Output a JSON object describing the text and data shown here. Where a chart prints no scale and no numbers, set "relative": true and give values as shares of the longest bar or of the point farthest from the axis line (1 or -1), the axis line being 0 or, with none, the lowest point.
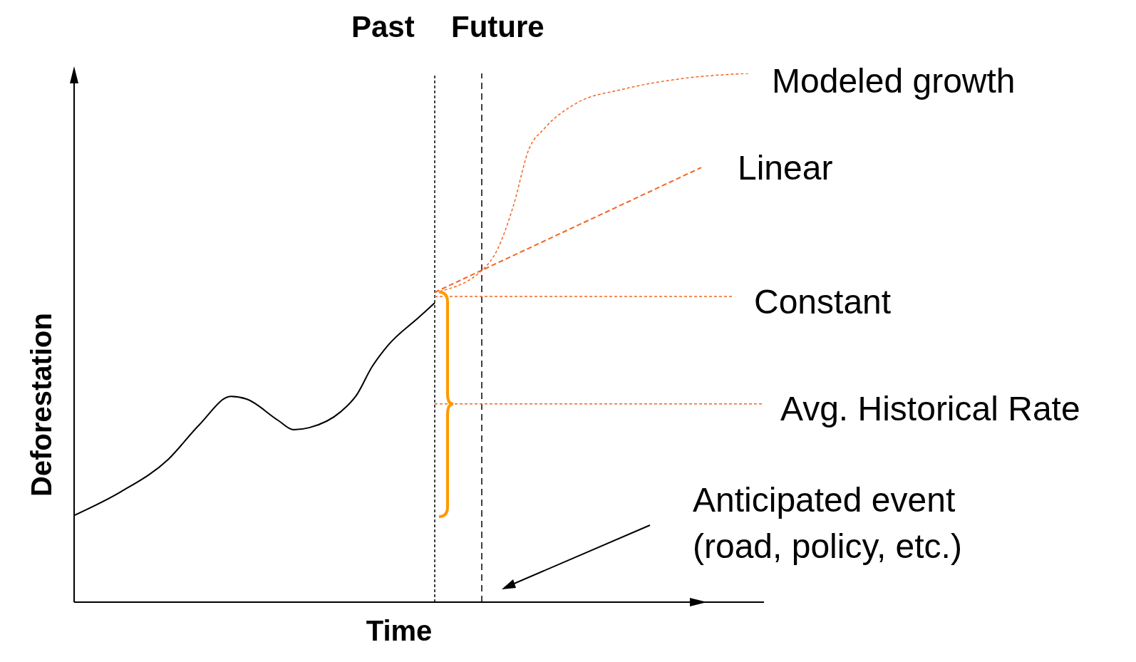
{
  "chart_data": {
    "type": "line",
    "relative": true,
    "xlabel": "Time",
    "ylabel": "Deforestation",
    "categories": [
      null,
      null,
      null,
      null,
      null,
      null,
      null,
      null,
      null,
      null,
      null,
      null,
      null,
      null,
      null,
      null,
      null,
      null,
      null,
      null,
      null,
      null,
      null,
      null,
      null,
      null,
      null,
      null,
      null,
      null,
      null,
      null,
      null,
      null,
      null,
      null,
      null,
      null,
      null,
      null,
      null,
      null,
      null,
      null,
      null
    ],
    "marker": "none",
    "series": [
      {
        "color": "#000000",
        "line_style": "solid",
        "values": [
          0.164,
          null,
          null,
          0.209,
          null,
          null,
          0.27,
          null,
          0.336,
          null,
          0.389,
          0.384,
          null,
          0.344,
          0.326,
          0.33,
          null,
          0.36,
          0.391,
          0.445,
          0.485,
          null,
          0.539,
          0.566,
          null,
          null,
          null,
          null,
          null,
          null,
          null,
          null,
          null,
          null,
          null,
          null,
          null,
          null,
          null,
          null,
          null,
          null,
          null,
          null,
          null
        ]
      },
      {
        "color": "#f26522",
        "line_style": "dotted",
        "values": [
          null,
          null,
          null,
          null,
          null,
          null,
          null,
          null,
          null,
          null,
          null,
          null,
          null,
          null,
          null,
          null,
          null,
          null,
          null,
          null,
          null,
          null,
          null,
          0.586,
          null,
          null,
          0.627,
          0.667,
          0.748,
          0.856,
          0.896,
          null,
          0.943,
          null,
          null,
          0.97,
          null,
          null,
          null,
          0.991,
          null,
          null,
          null,
          1.0,
          null
        ]
      },
      {
        "color": "#f26522",
        "line_style": "dashed",
        "values": [
          null,
          null,
          null,
          null,
          null,
          null,
          null,
          null,
          null,
          null,
          null,
          null,
          null,
          null,
          null,
          null,
          null,
          null,
          null,
          null,
          null,
          null,
          null,
          0.586,
          null,
          null,
          null,
          null,
          null,
          null,
          null,
          null,
          null,
          null,
          null,
          null,
          null,
          null,
          null,
          null,
          0.822,
          null,
          null,
          null,
          null
        ]
      },
      {
        "color": "#f26522",
        "line_style": "dotted",
        "values": [
          null,
          null,
          null,
          null,
          null,
          null,
          null,
          null,
          null,
          null,
          null,
          null,
          null,
          null,
          null,
          null,
          null,
          null,
          null,
          null,
          null,
          null,
          null,
          0.578,
          null,
          null,
          null,
          null,
          null,
          null,
          null,
          null,
          null,
          null,
          null,
          null,
          null,
          null,
          null,
          null,
          null,
          null,
          0.578,
          null,
          null
        ]
      },
      {
        "color": "#f26522",
        "line_style": "dotted",
        "values": [
          null,
          null,
          null,
          null,
          null,
          null,
          null,
          null,
          null,
          null,
          null,
          null,
          null,
          null,
          null,
          null,
          null,
          null,
          null,
          null,
          null,
          null,
          null,
          0.375,
          null,
          null,
          null,
          null,
          null,
          null,
          null,
          null,
          null,
          null,
          null,
          null,
          null,
          null,
          null,
          null,
          null,
          null,
          null,
          null,
          0.375
        ]
      }
    ],
    "annotations": [
      "Past",
      "Future",
      "Modeled growth",
      "Linear",
      "Constant",
      "Avg. Historical Rate",
      "Anticipated event (road, policy, etc.)"
    ]
  }
}
